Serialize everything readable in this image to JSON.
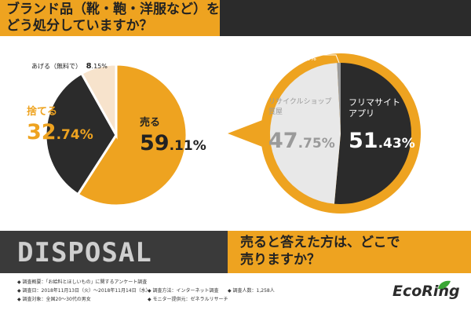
{
  "header": {
    "question1": "ブランド品（靴・鞄・洋服など）を\nどう処分していますか？"
  },
  "chart_data": [
    {
      "type": "pie",
      "slices": [
        {
          "label": "売る",
          "value": 59.11,
          "color": "#eea320"
        },
        {
          "label": "捨てる",
          "value": 32.74,
          "color": "#2b2b2b"
        },
        {
          "label": "あげる（無料で）",
          "value": 8.15,
          "color": "#f7e3cc"
        }
      ],
      "labels_display": [
        {
          "name": "売る",
          "pct_int": "59",
          "pct_dec": ".11",
          "pct_sign": "%"
        },
        {
          "name": "捨てる",
          "pct_int": "32",
          "pct_dec": ".74",
          "pct_sign": "%"
        },
        {
          "name": "あげる（無料で）",
          "pct_int": "8",
          "pct_dec": ".15",
          "pct_sign": "%"
        }
      ]
    },
    {
      "type": "pie",
      "slices": [
        {
          "label": "フリマサイト\nアプリ",
          "value": 51.43,
          "color": "#2b2b2b"
        },
        {
          "label": "リサイクルショップ\n質屋",
          "value": 47.75,
          "color": "#e8e8e8"
        },
        {
          "label": "その他",
          "value": 0.82,
          "color": "#9a9a9a"
        }
      ],
      "labels_display": [
        {
          "name": "フリマサイト\nアプリ",
          "pct_int": "51",
          "pct_dec": ".43",
          "pct_sign": "%"
        },
        {
          "name": "リサイクルショップ\n質屋",
          "pct_int": "47",
          "pct_dec": ".75",
          "pct_sign": "%"
        },
        {
          "name": "その他",
          "pct_int": "0",
          "pct_dec": ".82",
          "pct_sign": "%"
        }
      ]
    }
  ],
  "section": {
    "disposal_label": "DISPOSAL",
    "question2": "売ると答えた方は、どこで\n売りますか？"
  },
  "footer": {
    "line1": "◆ 調査概要：「お給料とほしいもの」に関するアンケート調査",
    "line2a": "◆ 調査日：2018年11月13日（火）〜2018年11月14日（水）",
    "line2b": "◆ 調査方法：インターネット調査",
    "line2c": "◆ 調査人数：1,258人",
    "line3a": "◆ 調査対象：全国20〜30代の男女",
    "line3b": "◆ モニター提供元：ゼネラルリサーチ",
    "logo": "EcoRing"
  },
  "colors": {
    "orange": "#eea320",
    "dark": "#2b2b2b",
    "cream": "#f7e3cc",
    "light_gray": "#e8e8e8",
    "gray": "#9a9a9a"
  }
}
